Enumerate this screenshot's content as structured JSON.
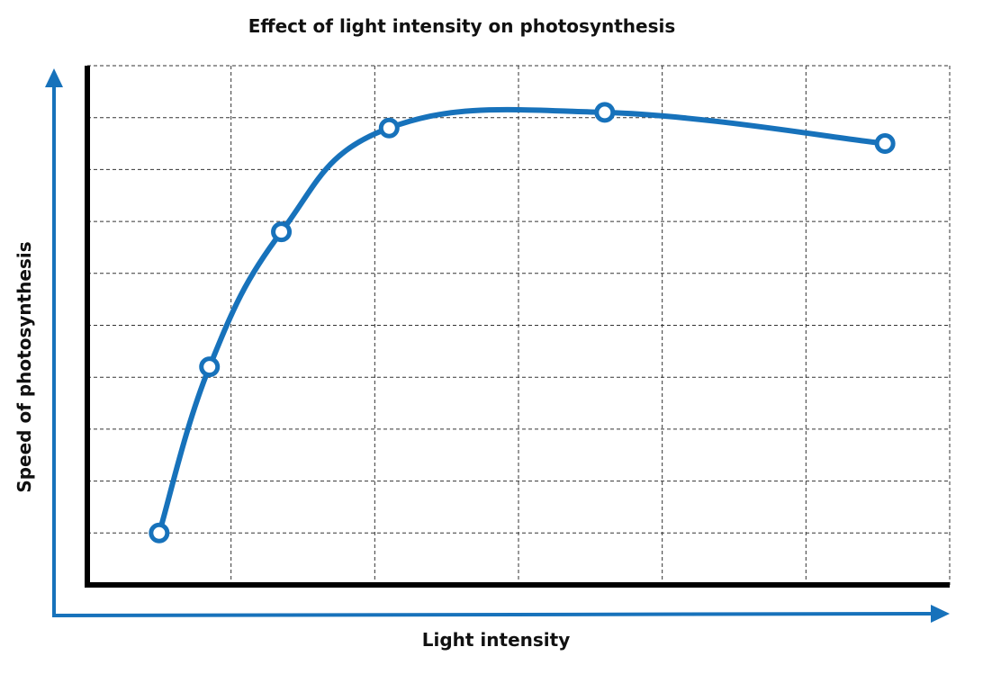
{
  "chart_data": {
    "type": "line",
    "title": "Effect of light intensity on photosynthesis",
    "xlabel": "Light intensity",
    "ylabel": "Speed of photosynthesis",
    "xlim": [
      0,
      6
    ],
    "ylim": [
      0,
      10
    ],
    "grid": true,
    "legend": "none",
    "series": [
      {
        "color": "#1772bb",
        "points": [
          {
            "x": 0.5,
            "y": 1.0
          },
          {
            "x": 0.85,
            "y": 4.2
          },
          {
            "x": 1.35,
            "y": 6.8
          },
          {
            "x": 2.1,
            "y": 8.8
          },
          {
            "x": 3.6,
            "y": 9.1
          },
          {
            "x": 5.55,
            "y": 8.5
          }
        ]
      }
    ]
  },
  "colors": {
    "series": "#1772bb",
    "axis_arrows": "#1772bb",
    "frame": "#000000",
    "grid": "#333333"
  }
}
